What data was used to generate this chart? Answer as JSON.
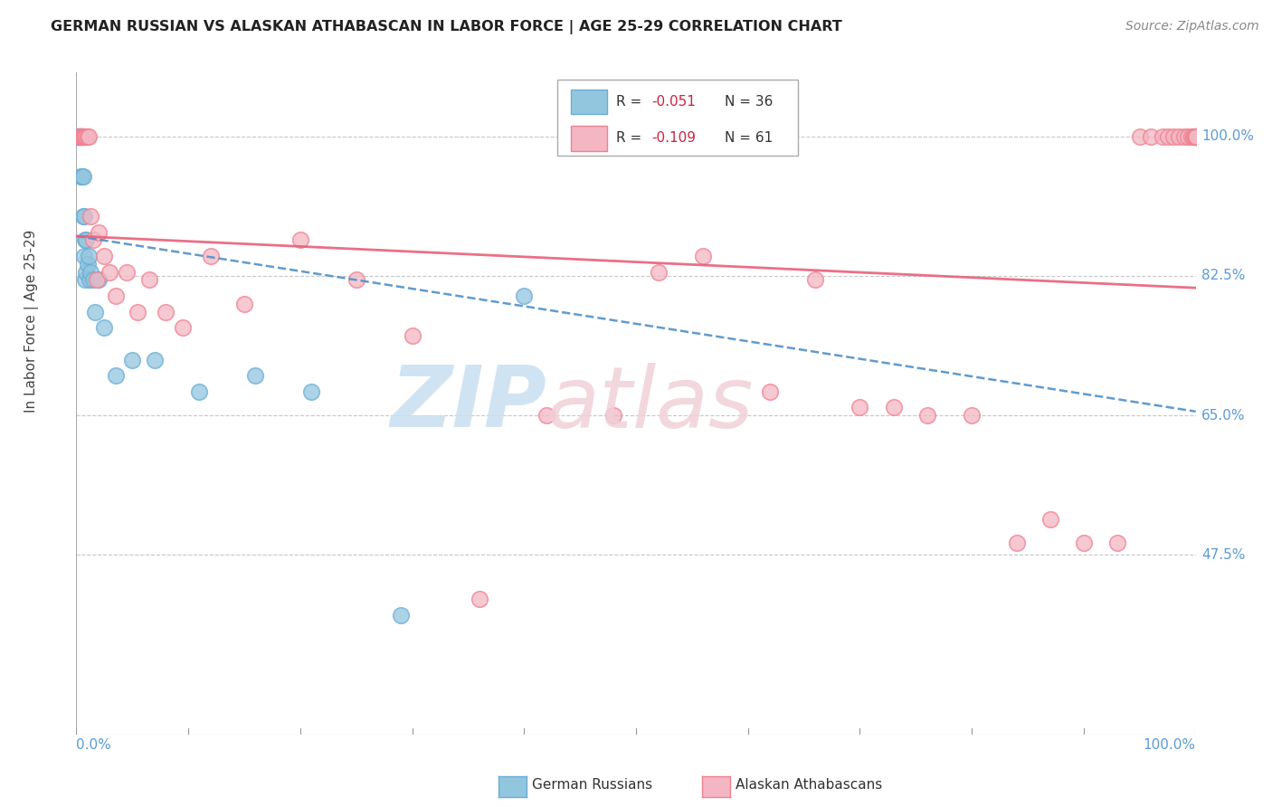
{
  "title": "GERMAN RUSSIAN VS ALASKAN ATHABASCAN IN LABOR FORCE | AGE 25-29 CORRELATION CHART",
  "source": "Source: ZipAtlas.com",
  "ylabel": "In Labor Force | Age 25-29",
  "y_ticks": [
    0.475,
    0.65,
    0.825,
    1.0
  ],
  "y_tick_labels": [
    "47.5%",
    "65.0%",
    "82.5%",
    "100.0%"
  ],
  "watermark_zip": "ZIP",
  "watermark_atlas": "atlas",
  "legend_r1": "-0.051",
  "legend_n1": "36",
  "legend_r2": "-0.109",
  "legend_n2": "61",
  "blue_scatter_color": "#92c5de",
  "blue_edge_color": "#6baed6",
  "pink_scatter_color": "#f4b6c2",
  "pink_edge_color": "#f08090",
  "blue_line_color": "#5090c8",
  "pink_line_color": "#e8607a",
  "background_color": "#ffffff",
  "grid_color": "#c8c8c8",
  "label_color": "#5b9bd5",
  "text_color": "#444444",
  "blue_slope": -0.22,
  "blue_intercept": 0.875,
  "pink_slope": -0.065,
  "pink_intercept": 0.875,
  "german_russian_x": [
    0.001,
    0.002,
    0.002,
    0.003,
    0.003,
    0.003,
    0.004,
    0.004,
    0.004,
    0.005,
    0.005,
    0.006,
    0.006,
    0.006,
    0.007,
    0.007,
    0.008,
    0.008,
    0.009,
    0.009,
    0.01,
    0.011,
    0.012,
    0.013,
    0.015,
    0.017,
    0.02,
    0.025,
    0.035,
    0.05,
    0.07,
    0.11,
    0.16,
    0.21,
    0.29,
    0.4
  ],
  "german_russian_y": [
    1.0,
    1.0,
    1.0,
    1.0,
    1.0,
    1.0,
    1.0,
    1.0,
    0.95,
    1.0,
    0.95,
    1.0,
    0.95,
    0.9,
    0.9,
    0.85,
    0.87,
    0.82,
    0.87,
    0.83,
    0.84,
    0.85,
    0.82,
    0.83,
    0.82,
    0.78,
    0.82,
    0.76,
    0.7,
    0.72,
    0.72,
    0.68,
    0.7,
    0.68,
    0.4,
    0.8
  ],
  "alaskan_x": [
    0.003,
    0.004,
    0.005,
    0.005,
    0.006,
    0.007,
    0.008,
    0.009,
    0.01,
    0.011,
    0.013,
    0.015,
    0.018,
    0.02,
    0.025,
    0.03,
    0.035,
    0.045,
    0.055,
    0.065,
    0.08,
    0.095,
    0.12,
    0.15,
    0.2,
    0.25,
    0.3,
    0.36,
    0.42,
    0.48,
    0.52,
    0.56,
    0.62,
    0.66,
    0.7,
    0.73,
    0.76,
    0.8,
    0.84,
    0.87,
    0.9,
    0.93,
    0.95,
    0.96,
    0.97,
    0.975,
    0.98,
    0.985,
    0.99,
    0.993,
    0.996,
    0.998,
    0.999,
    1.0,
    1.0,
    1.0,
    1.0,
    1.0,
    1.0,
    1.0,
    1.0
  ],
  "alaskan_y": [
    1.0,
    1.0,
    1.0,
    1.0,
    1.0,
    1.0,
    1.0,
    1.0,
    1.0,
    1.0,
    0.9,
    0.87,
    0.82,
    0.88,
    0.85,
    0.83,
    0.8,
    0.83,
    0.78,
    0.82,
    0.78,
    0.76,
    0.85,
    0.79,
    0.87,
    0.82,
    0.75,
    0.42,
    0.65,
    0.65,
    0.83,
    0.85,
    0.68,
    0.82,
    0.66,
    0.66,
    0.65,
    0.65,
    0.49,
    0.52,
    0.49,
    0.49,
    1.0,
    1.0,
    1.0,
    1.0,
    1.0,
    1.0,
    1.0,
    1.0,
    1.0,
    1.0,
    1.0,
    1.0,
    1.0,
    1.0,
    1.0,
    1.0,
    1.0,
    1.0,
    1.0
  ]
}
